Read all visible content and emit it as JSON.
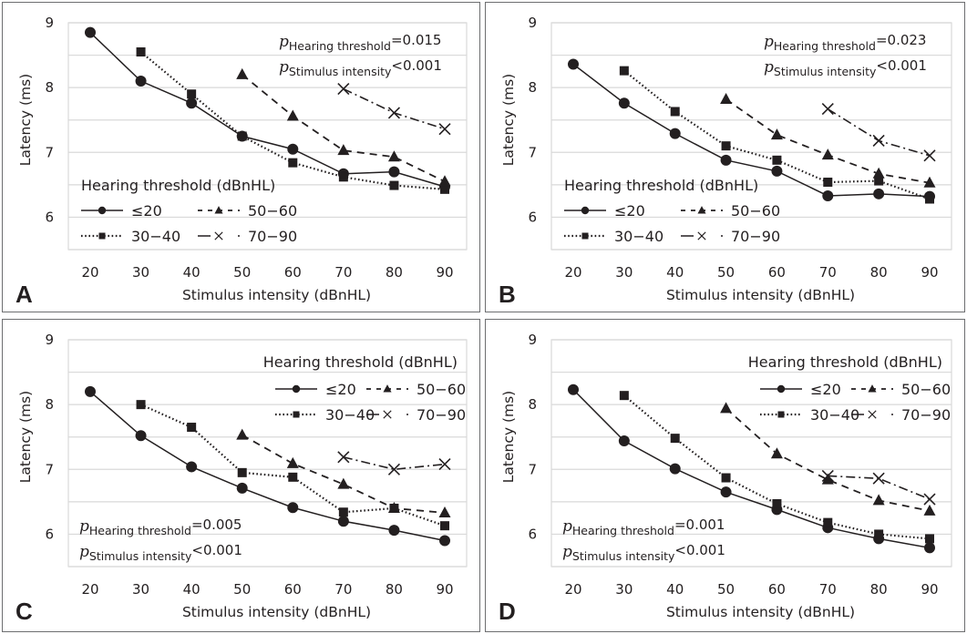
{
  "chart_data": [
    {
      "type": "line",
      "panel": "A",
      "title": "",
      "xlabel": "Stimulus intensity (dBnHL)",
      "ylabel": "Latency (ms)",
      "x": [
        20,
        30,
        40,
        50,
        60,
        70,
        80,
        90
      ],
      "xticks": [
        "20",
        "30",
        "40",
        "50",
        "60",
        "70",
        "80",
        "90"
      ],
      "yticks": [
        "9",
        "8",
        "7",
        "6"
      ],
      "ylim": [
        5.5,
        9
      ],
      "grid": true,
      "legend_title": "Hearing threshold (dBnHL)",
      "legend_position": "bottom-left",
      "stats_position": "top-right",
      "stats": [
        {
          "symbol": "p",
          "subscript": "Hearing threshold",
          "op": "=",
          "value": "0.015"
        },
        {
          "symbol": "p",
          "subscript": "Stimulus intensity",
          "op": "<",
          "value": "0.001"
        }
      ],
      "series": [
        {
          "name": "≤20",
          "style": "solid",
          "marker": "circle",
          "values": [
            8.85,
            8.1,
            7.76,
            7.25,
            7.05,
            6.67,
            6.7,
            6.47
          ]
        },
        {
          "name": "30−40",
          "style": "dotted",
          "marker": "square",
          "values": [
            null,
            8.55,
            7.9,
            7.25,
            6.84,
            6.62,
            6.49,
            6.43
          ]
        },
        {
          "name": "50−60",
          "style": "dashed",
          "marker": "triangle",
          "values": [
            null,
            null,
            null,
            8.2,
            7.56,
            7.03,
            6.93,
            6.55
          ]
        },
        {
          "name": "70−90",
          "style": "dashdot",
          "marker": "x",
          "values": [
            null,
            null,
            null,
            null,
            null,
            7.98,
            7.61,
            7.36
          ]
        }
      ]
    },
    {
      "type": "line",
      "panel": "B",
      "title": "",
      "xlabel": "Stimulus intensity (dBnHL)",
      "ylabel": "Latency (ms)",
      "x": [
        20,
        30,
        40,
        50,
        60,
        70,
        80,
        90
      ],
      "xticks": [
        "20",
        "30",
        "40",
        "50",
        "60",
        "70",
        "80",
        "90"
      ],
      "yticks": [
        "9",
        "8",
        "7",
        "6"
      ],
      "ylim": [
        5.5,
        9
      ],
      "grid": true,
      "legend_title": "Hearing threshold (dBnHL)",
      "legend_position": "bottom-left",
      "stats_position": "top-right",
      "stats": [
        {
          "symbol": "p",
          "subscript": "Hearing threshold",
          "op": "=",
          "value": "0.023"
        },
        {
          "symbol": "p",
          "subscript": "Stimulus intensity",
          "op": "<",
          "value": "0.001"
        }
      ],
      "series": [
        {
          "name": "≤20",
          "style": "solid",
          "marker": "circle",
          "values": [
            8.36,
            7.76,
            7.29,
            6.88,
            6.71,
            6.33,
            6.36,
            6.32
          ]
        },
        {
          "name": "30−40",
          "style": "dotted",
          "marker": "square",
          "values": [
            null,
            8.26,
            7.63,
            7.1,
            6.88,
            6.54,
            6.56,
            6.28
          ]
        },
        {
          "name": "50−60",
          "style": "dashed",
          "marker": "triangle",
          "values": [
            null,
            null,
            null,
            7.82,
            7.27,
            6.96,
            6.67,
            6.53
          ]
        },
        {
          "name": "70−90",
          "style": "dashdot",
          "marker": "x",
          "values": [
            null,
            null,
            null,
            null,
            null,
            7.67,
            7.18,
            6.95
          ]
        }
      ]
    },
    {
      "type": "line",
      "panel": "C",
      "title": "",
      "xlabel": "Stimulus intensity (dBnHL)",
      "ylabel": "Latency (ms)",
      "x": [
        20,
        30,
        40,
        50,
        60,
        70,
        80,
        90
      ],
      "xticks": [
        "20",
        "30",
        "40",
        "50",
        "60",
        "70",
        "80",
        "90"
      ],
      "yticks": [
        "9",
        "8",
        "7",
        "6"
      ],
      "ylim": [
        5.5,
        9
      ],
      "grid": true,
      "legend_title": "Hearing threshold (dBnHL)",
      "legend_position": "top-right",
      "stats_position": "bottom-left",
      "stats": [
        {
          "symbol": "p",
          "subscript": "Hearing threshold",
          "op": "=",
          "value": "0.005"
        },
        {
          "symbol": "p",
          "subscript": "Stimulus intensity",
          "op": "<",
          "value": "0.001"
        }
      ],
      "series": [
        {
          "name": "≤20",
          "style": "solid",
          "marker": "circle",
          "values": [
            8.2,
            7.52,
            7.04,
            6.71,
            6.41,
            6.2,
            6.06,
            5.9
          ]
        },
        {
          "name": "30−40",
          "style": "dotted",
          "marker": "square",
          "values": [
            null,
            8.0,
            7.65,
            6.95,
            6.88,
            6.34,
            6.4,
            6.13
          ]
        },
        {
          "name": "50−60",
          "style": "dashed",
          "marker": "triangle",
          "values": [
            null,
            null,
            null,
            7.53,
            7.09,
            6.77,
            6.4,
            6.33
          ]
        },
        {
          "name": "70−90",
          "style": "dashdot",
          "marker": "x",
          "values": [
            null,
            null,
            null,
            null,
            null,
            7.19,
            7.0,
            7.08
          ]
        }
      ]
    },
    {
      "type": "line",
      "panel": "D",
      "title": "",
      "xlabel": "Stimulus intensity (dBnHL)",
      "ylabel": "Latency (ms)",
      "x": [
        20,
        30,
        40,
        50,
        60,
        70,
        80,
        90
      ],
      "xticks": [
        "20",
        "30",
        "40",
        "50",
        "60",
        "70",
        "80",
        "90"
      ],
      "yticks": [
        "9",
        "8",
        "7",
        "6"
      ],
      "ylim": [
        5.5,
        9
      ],
      "grid": true,
      "legend_title": "Hearing threshold (dBnHL)",
      "legend_position": "top-right",
      "stats_position": "bottom-left",
      "stats": [
        {
          "symbol": "p",
          "subscript": "Hearing threshold",
          "op": "=",
          "value": "0.001"
        },
        {
          "symbol": "p",
          "subscript": "Stimulus intensity",
          "op": "<",
          "value": "0.001"
        }
      ],
      "series": [
        {
          "name": "≤20",
          "style": "solid",
          "marker": "circle",
          "values": [
            8.23,
            7.44,
            7.01,
            6.65,
            6.38,
            6.1,
            5.93,
            5.79
          ]
        },
        {
          "name": "30−40",
          "style": "dotted",
          "marker": "square",
          "values": [
            null,
            8.14,
            7.48,
            6.87,
            6.47,
            6.18,
            6.0,
            5.93
          ]
        },
        {
          "name": "50−60",
          "style": "dashed",
          "marker": "triangle",
          "values": [
            null,
            null,
            null,
            7.94,
            7.24,
            6.84,
            6.52,
            6.36
          ]
        },
        {
          "name": "70−90",
          "style": "dashdot",
          "marker": "x",
          "values": [
            null,
            null,
            null,
            null,
            null,
            6.9,
            6.86,
            6.54
          ]
        }
      ]
    }
  ],
  "colors": {
    "ink": "#231f20",
    "grid": "#d9d9d9",
    "panel_border": "#6d6e70"
  }
}
